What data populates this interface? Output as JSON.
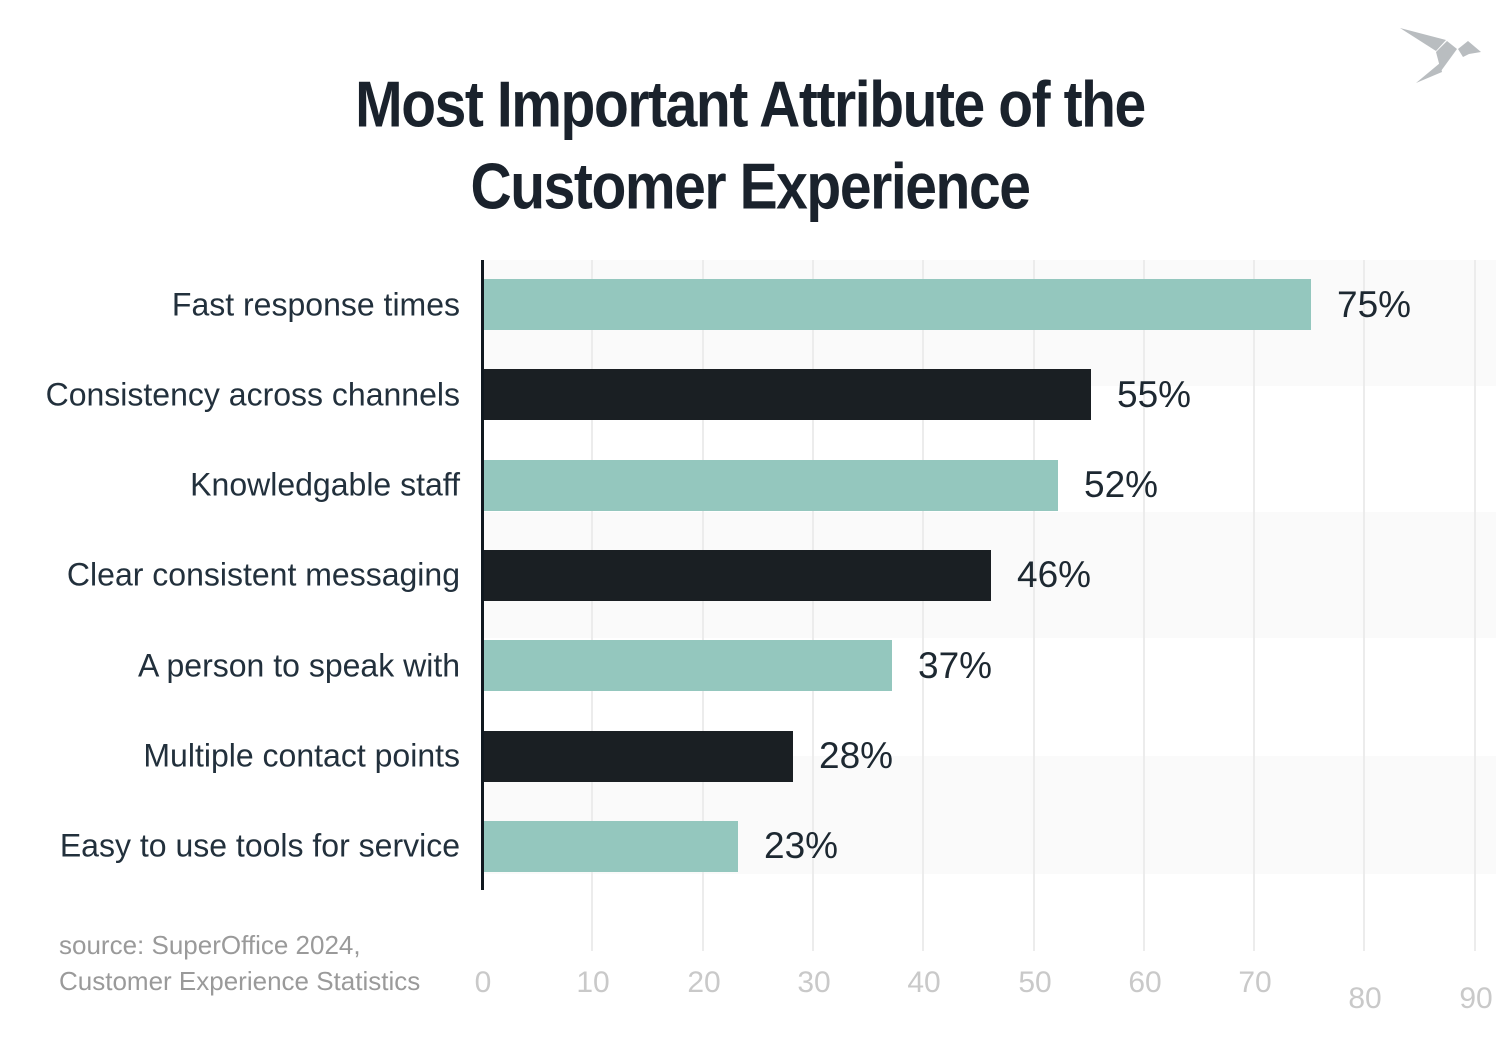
{
  "page": {
    "logo_icon": "origami-bird-icon"
  },
  "chart_data": {
    "type": "bar",
    "orientation": "horizontal",
    "title": "Most Important Attribute of the Customer Experience",
    "categories": [
      "Fast response times",
      "Consistency across channels",
      "Knowledgable staff",
      "Clear consistent messaging",
      "A person to speak with",
      "Multiple contact points",
      "Easy to use tools for service"
    ],
    "values": [
      75,
      55,
      52,
      46,
      37,
      28,
      23
    ],
    "value_labels": [
      "75%",
      "55%",
      "52%",
      "46%",
      "37%",
      "28%",
      "23%"
    ],
    "bar_colors": [
      "#94c7be",
      "#1a1f23",
      "#94c7be",
      "#1a1f23",
      "#94c7be",
      "#1a1f23",
      "#94c7be"
    ],
    "x_ticks": [
      0,
      10,
      20,
      30,
      40,
      50,
      60,
      70,
      80,
      90
    ],
    "xlim": [
      0,
      90
    ],
    "xlabel": "",
    "ylabel": "",
    "grid": "vertical light gridlines with alternating horizontal background stripes",
    "legend": "none",
    "source_lines": [
      "source: SuperOffice 2024,",
      "Customer Experience Statistics"
    ],
    "colors": {
      "teal_bar": "#94c7be",
      "dark_bar": "#1a1f23",
      "axis_line": "#10181f",
      "gridline": "#ececec",
      "stripe": "#fafafa",
      "tick_label": "#c9c9c9",
      "category_label": "#22303c",
      "value_label": "#1d2831",
      "title": "#1a222c",
      "source_text": "#9a9a9a",
      "logo": "#b9bdc0"
    }
  }
}
